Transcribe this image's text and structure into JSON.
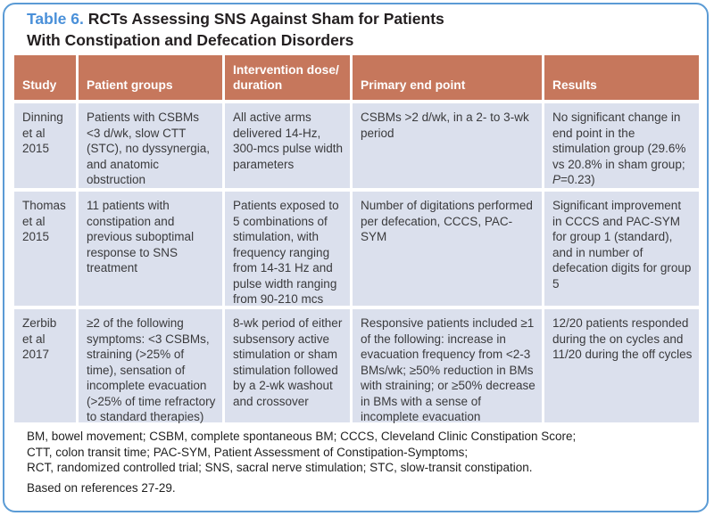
{
  "colors": {
    "header_bg": "#c6775c",
    "row_bg": "#dbe0ed",
    "border_blue": "#5b9bd5",
    "title_blue": "#4a90d9",
    "title_black": "#231f20",
    "body_text": "#3a3a3c",
    "footnote_text": "#1f1f1f"
  },
  "title": {
    "table_number": "Table 6.",
    "line1": " RCTs Assessing SNS Against Sham for Patients",
    "line2": "With Constipation and Defecation Disorders"
  },
  "table": {
    "headers": [
      {
        "l1": "Study"
      },
      {
        "l1": "Patient groups"
      },
      {
        "l1": "Intervention dose/",
        "l2": "duration"
      },
      {
        "l1": "Primary end point"
      },
      {
        "l1": "Results"
      }
    ],
    "rows": [
      {
        "study": "Dinning et al 2015",
        "patient_groups": "Patients with CSBMs <3 d/wk, slow CTT (STC), no dyssynergia, and anatomic obstruction",
        "intervention": "All active arms delivered 14-Hz, 300-mcs pulse width parameters",
        "primary_end_point": "CSBMs >2 d/wk, in a 2- to 3-wk period",
        "results_pre": "No significant change in end point in the stimulation group (29.6% vs 20.8% in sham group; ",
        "results_italic": "P",
        "results_post": "=0.23)"
      },
      {
        "study": "Thomas et al 2015",
        "patient_groups": "11 patients with constipation and previous suboptimal response to SNS treatment",
        "intervention": "Patients exposed to 5 combinations of stimulation, with frequency ranging from 14-31 Hz and pulse width ranging from 90-210 mcs",
        "primary_end_point": "Number of digitations performed per defecation, CCCS, PAC-SYM",
        "results_pre": "Significant improvement in CCCS and PAC-SYM for group 1 (standard), and in number of defecation digits for group 5"
      },
      {
        "study": "Zerbib et al 2017",
        "patient_groups": "≥2 of the following symptoms: <3 CSBMs, straining (>25% of time), sensation of incomplete evacuation (>25% of time refractory to standard therapies)",
        "intervention": "8-wk period of either subsensory active stimulation or sham stimulation followed by a 2-wk washout and crossover",
        "primary_end_point": "Responsive patients included ≥1 of the following: increase in evacuation frequency from <2-3 BMs/wk; ≥50% reduction in BMs with straining; or ≥50% decrease in BMs with a sense of incomplete evacuation",
        "results_pre": "12/20 patients responded during the on cycles and 11/20 during the off cycles"
      }
    ]
  },
  "footnotes": {
    "line1": "BM, bowel movement; CSBM, complete spontaneous BM; CCCS, Cleveland Clinic Constipation Score;",
    "line2": "CTT, colon transit time; PAC-SYM, Patient Assessment of Constipation-Symptoms;",
    "line3": "RCT, randomized controlled trial; SNS, sacral nerve stimulation; STC, slow-transit constipation.",
    "based_on": "Based on references 27-29."
  }
}
